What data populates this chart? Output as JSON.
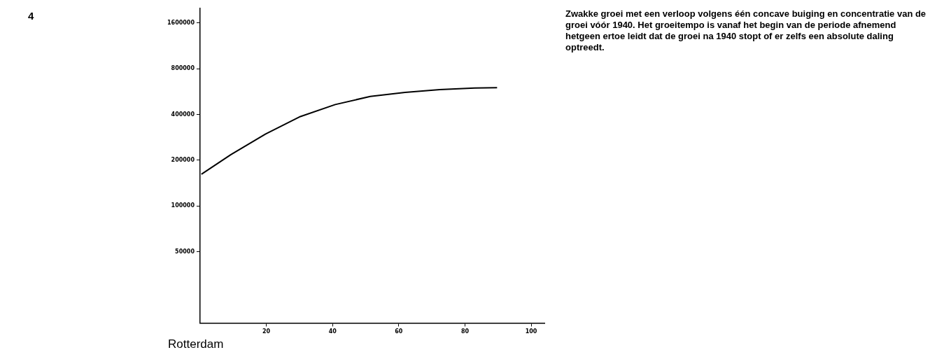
{
  "chart_data": {
    "type": "line",
    "title": "Rotterdam",
    "annotations": [
      "4",
      "Zwakke groei met een verloop volgens één concave buiging en concentratie van de groei vóór 1940. Het groeitempo is vanaf het begin van de periode afnemend hetgeen ertoe leidt dat de groei na 1940 stopt of er zelfs een absolute daling optreedt."
    ],
    "x": [
      0.4,
      9.3,
      19.8,
      30.3,
      40.8,
      51.4,
      61.9,
      72.4,
      82.9,
      89.7
    ],
    "series": [
      {
        "color": "#000000",
        "values": [
          162000,
          218000,
          298000,
          388000,
          465000,
          526000,
          559000,
          584000,
          597000,
          600000
        ]
      }
    ],
    "xlim": [
      0,
      104
    ],
    "xticks": [
      20,
      40,
      60,
      80,
      100
    ],
    "ylim": [
      17000,
      2000000
    ],
    "yticks": [
      50000,
      100000,
      200000,
      400000,
      800000,
      1600000
    ],
    "log": "y",
    "grid": false,
    "legend": false,
    "marker": "none",
    "line_style": "solid"
  }
}
